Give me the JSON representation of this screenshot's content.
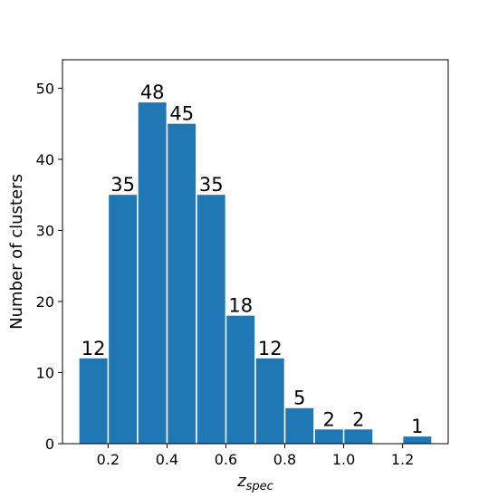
{
  "chart_data": {
    "type": "bar",
    "title": "",
    "xlabel_base": "z",
    "xlabel_sub": "spec",
    "ylabel": "Number of clusters",
    "xlim": [
      0.045,
      1.355
    ],
    "ylim": [
      0,
      54
    ],
    "xticks": [
      "0.2",
      "0.4",
      "0.6",
      "0.8",
      "1.0",
      "1.2"
    ],
    "xtick_values": [
      0.2,
      0.4,
      0.6,
      0.8,
      1.0,
      1.2
    ],
    "yticks": [
      "0",
      "10",
      "20",
      "30",
      "40",
      "50"
    ],
    "ytick_values": [
      0,
      10,
      20,
      30,
      40,
      50
    ],
    "bin_width": 0.1,
    "bins": [
      {
        "start": 0.1,
        "value": 12
      },
      {
        "start": 0.2,
        "value": 35
      },
      {
        "start": 0.3,
        "value": 48
      },
      {
        "start": 0.4,
        "value": 45
      },
      {
        "start": 0.5,
        "value": 35
      },
      {
        "start": 0.6,
        "value": 18
      },
      {
        "start": 0.7,
        "value": 12
      },
      {
        "start": 0.8,
        "value": 5
      },
      {
        "start": 0.9,
        "value": 2
      },
      {
        "start": 1.0,
        "value": 2
      },
      {
        "start": 1.1,
        "value": 0
      },
      {
        "start": 1.2,
        "value": 1
      }
    ],
    "data_labels": [
      "12",
      "35",
      "48",
      "45",
      "35",
      "18",
      "12",
      "5",
      "2",
      "2",
      "",
      "1"
    ],
    "bar_color": "#1f77b4",
    "grid": false,
    "legend": "none"
  }
}
